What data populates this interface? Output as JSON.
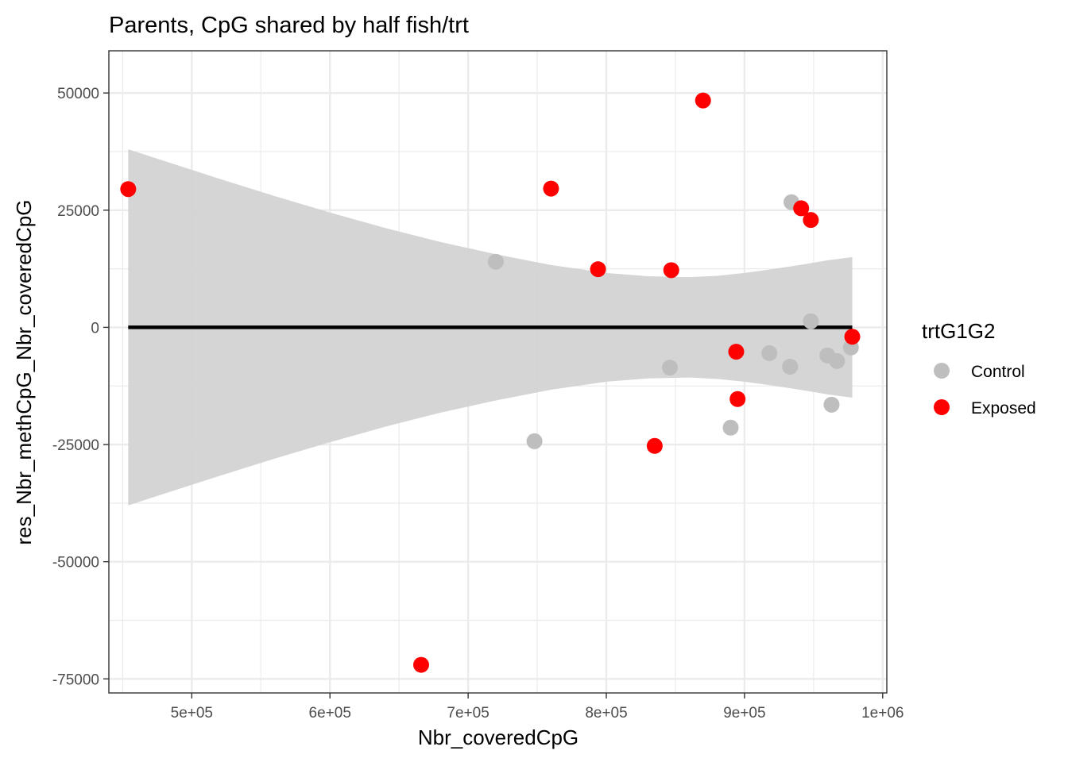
{
  "chart_data": {
    "type": "scatter",
    "title": "Parents, CpG shared by half fish/trt",
    "xlabel": "Nbr_coveredCpG",
    "ylabel": "res_Nbr_methCpG_Nbr_coveredCpG",
    "xlim": [
      440000,
      1003000
    ],
    "ylim": [
      -78000,
      59000
    ],
    "x_ticks": [
      500000,
      600000,
      700000,
      800000,
      900000,
      1000000
    ],
    "x_tick_labels": [
      "5e+05",
      "6e+05",
      "7e+05",
      "8e+05",
      "9e+05",
      "1e+06"
    ],
    "y_ticks": [
      50000,
      25000,
      0,
      -25000,
      -50000,
      -75000
    ],
    "y_tick_labels": [
      "50000",
      "25000",
      "0",
      "-25000",
      "-50000",
      "-75000"
    ],
    "grid": true,
    "legend": {
      "title": "trtG1G2",
      "placement": "right",
      "entries": [
        {
          "label": "Control",
          "color": "#bebebe"
        },
        {
          "label": "Exposed",
          "color": "#ff0000"
        }
      ]
    },
    "fit_line": {
      "x": [
        454000,
        978000
      ],
      "y": [
        0,
        0
      ],
      "color": "#000000"
    },
    "confidence_band": {
      "x": [
        454000,
        480000,
        520000,
        560000,
        600000,
        640000,
        680000,
        720000,
        760000,
        800000,
        830000,
        860000,
        880000,
        900000,
        920000,
        940000,
        960000,
        978000
      ],
      "upper": [
        38000,
        35500,
        31700,
        28000,
        24500,
        21200,
        18200,
        15600,
        13300,
        11600,
        10900,
        10700,
        11000,
        11600,
        12400,
        13300,
        14300,
        15000
      ],
      "color": "#d3d3d3"
    },
    "series": [
      {
        "name": "Control",
        "color": "#bebebe",
        "points": [
          {
            "x": 720000,
            "y": 14000
          },
          {
            "x": 748000,
            "y": -24300
          },
          {
            "x": 846000,
            "y": -8600
          },
          {
            "x": 890000,
            "y": -21400
          },
          {
            "x": 918000,
            "y": -5500
          },
          {
            "x": 933000,
            "y": -8400
          },
          {
            "x": 934000,
            "y": 26700
          },
          {
            "x": 948000,
            "y": 1300
          },
          {
            "x": 960000,
            "y": -6000
          },
          {
            "x": 963000,
            "y": -16500
          },
          {
            "x": 967000,
            "y": -7200
          },
          {
            "x": 977000,
            "y": -4300
          }
        ]
      },
      {
        "name": "Exposed",
        "color": "#ff0000",
        "points": [
          {
            "x": 454000,
            "y": 29500
          },
          {
            "x": 666000,
            "y": -72000
          },
          {
            "x": 760000,
            "y": 29600
          },
          {
            "x": 794000,
            "y": 12400
          },
          {
            "x": 835000,
            "y": -25300
          },
          {
            "x": 847000,
            "y": 12200
          },
          {
            "x": 870000,
            "y": 48400
          },
          {
            "x": 894000,
            "y": -5200
          },
          {
            "x": 895000,
            "y": -15300
          },
          {
            "x": 941000,
            "y": 25400
          },
          {
            "x": 948000,
            "y": 22900
          },
          {
            "x": 978000,
            "y": -2000
          }
        ]
      }
    ]
  }
}
